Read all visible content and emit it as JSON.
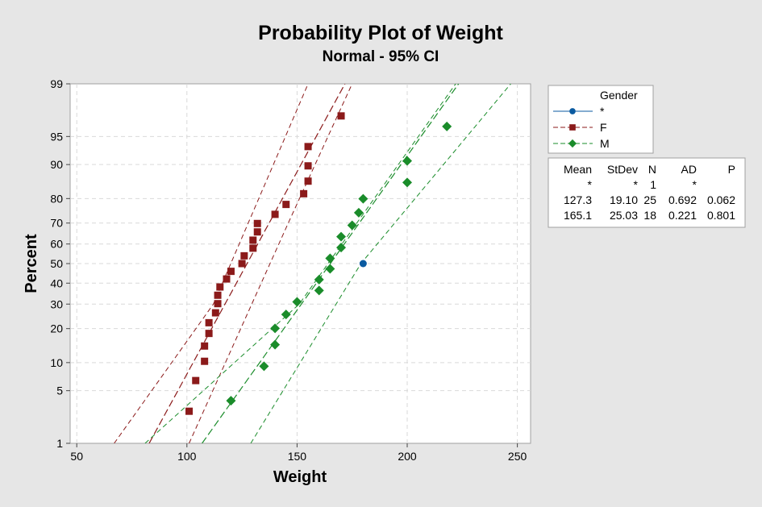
{
  "chart_data": {
    "type": "scatter",
    "title": "Probability Plot of Weight",
    "subtitle": "Normal - 95% CI",
    "xlabel": "Weight",
    "ylabel": "Percent",
    "xlim": [
      47,
      256
    ],
    "ylim_percent": [
      1,
      99
    ],
    "scale": "normal-probability",
    "grid": true,
    "x_ticks": [
      50,
      100,
      150,
      200,
      250
    ],
    "y_ticks": [
      1,
      5,
      10,
      20,
      30,
      40,
      50,
      60,
      70,
      80,
      90,
      95,
      99
    ],
    "legend": {
      "title": "Gender",
      "placement": "right",
      "entries": [
        {
          "label": "*",
          "color": "#0a5aa0",
          "marker": "circle"
        },
        {
          "label": "F",
          "color": "#8b1a1a",
          "marker": "square"
        },
        {
          "label": "M",
          "color": "#1a8c2a",
          "marker": "diamond"
        }
      ]
    },
    "series": [
      {
        "name": "*",
        "color": "#0a5aa0",
        "marker": "circle",
        "points": [
          {
            "x": 180,
            "y": 50
          }
        ]
      },
      {
        "name": "F",
        "color": "#8b1a1a",
        "marker": "square",
        "mean": 127.3,
        "stdev": 19.1,
        "points": [
          {
            "x": 101,
            "y": 2.8
          },
          {
            "x": 104,
            "y": 6.5
          },
          {
            "x": 108,
            "y": 10.3
          },
          {
            "x": 108,
            "y": 14.3
          },
          {
            "x": 110,
            "y": 18.3
          },
          {
            "x": 110,
            "y": 22.2
          },
          {
            "x": 113,
            "y": 26.2
          },
          {
            "x": 114,
            "y": 30.2
          },
          {
            "x": 114,
            "y": 34.1
          },
          {
            "x": 115,
            "y": 38.1
          },
          {
            "x": 118,
            "y": 42.1
          },
          {
            "x": 120,
            "y": 46.0
          },
          {
            "x": 125,
            "y": 50.0
          },
          {
            "x": 126,
            "y": 54.0
          },
          {
            "x": 130,
            "y": 57.9
          },
          {
            "x": 130,
            "y": 61.9
          },
          {
            "x": 132,
            "y": 65.9
          },
          {
            "x": 132,
            "y": 69.8
          },
          {
            "x": 140,
            "y": 73.8
          },
          {
            "x": 145,
            "y": 77.8
          },
          {
            "x": 153,
            "y": 81.7
          },
          {
            "x": 155,
            "y": 85.7
          },
          {
            "x": 155,
            "y": 89.7
          },
          {
            "x": 155,
            "y": 93.5
          },
          {
            "x": 170,
            "y": 97.2
          }
        ]
      },
      {
        "name": "M",
        "color": "#1a8c2a",
        "marker": "diamond",
        "mean": 165.1,
        "stdev": 25.03,
        "points": [
          {
            "x": 120,
            "y": 3.8
          },
          {
            "x": 135,
            "y": 9.2
          },
          {
            "x": 140,
            "y": 14.7
          },
          {
            "x": 140,
            "y": 20.1
          },
          {
            "x": 145,
            "y": 25.5
          },
          {
            "x": 150,
            "y": 31.0
          },
          {
            "x": 160,
            "y": 36.4
          },
          {
            "x": 160,
            "y": 41.8
          },
          {
            "x": 165,
            "y": 47.3
          },
          {
            "x": 165,
            "y": 52.7
          },
          {
            "x": 170,
            "y": 58.2
          },
          {
            "x": 170,
            "y": 63.6
          },
          {
            "x": 175,
            "y": 69.0
          },
          {
            "x": 178,
            "y": 74.5
          },
          {
            "x": 180,
            "y": 79.9
          },
          {
            "x": 200,
            "y": 85.3
          },
          {
            "x": 200,
            "y": 90.8
          },
          {
            "x": 218,
            "y": 96.2
          }
        ]
      }
    ],
    "ci_bands": [
      {
        "series": "F",
        "color": "#8b1a1a",
        "lower": [
          {
            "x": 101,
            "y": 1
          },
          {
            "x": 146,
            "y": 70
          },
          {
            "x": 175,
            "y": 99
          }
        ],
        "upper": [
          {
            "x": 67,
            "y": 1
          },
          {
            "x": 112,
            "y": 30
          },
          {
            "x": 155,
            "y": 99
          }
        ]
      },
      {
        "series": "M",
        "color": "#1a8c2a",
        "lower": [
          {
            "x": 129,
            "y": 1
          },
          {
            "x": 179,
            "y": 50
          },
          {
            "x": 247,
            "y": 99
          }
        ],
        "upper": [
          {
            "x": 81,
            "y": 1
          },
          {
            "x": 151,
            "y": 30
          },
          {
            "x": 222,
            "y": 99
          }
        ]
      }
    ],
    "stats_table": {
      "headers": [
        "Mean",
        "StDev",
        "N",
        "AD",
        "P"
      ],
      "rows": [
        [
          "*",
          "*",
          "1",
          "*",
          ""
        ],
        [
          "127.3",
          "19.10",
          "25",
          "0.692",
          "0.062"
        ],
        [
          "165.1",
          "25.03",
          "18",
          "0.221",
          "0.801"
        ]
      ]
    }
  }
}
